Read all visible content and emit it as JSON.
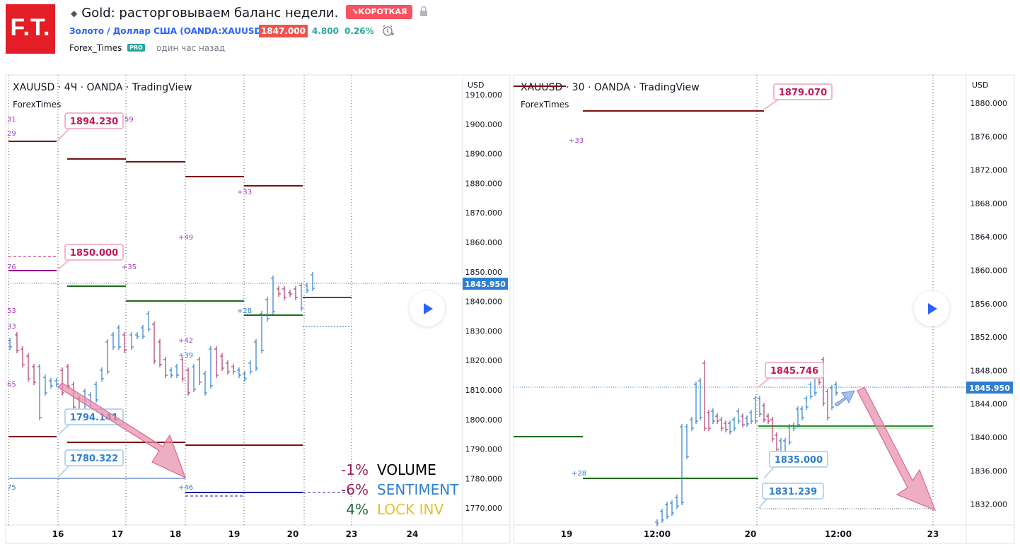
{
  "header": {
    "logo_text": "F.T.",
    "title": "Gold: расторговываем баланс недели.",
    "idea_badge": "↘КОРОТКАЯ",
    "symbol": "Золото / Доллар США (OANDA:XAUUSD)",
    "price": "1847.000",
    "change": "4.800",
    "change_pct": "0.26%",
    "author": "Forex_Times",
    "author_badge": "PRO",
    "published": "один час назад"
  },
  "left_chart": {
    "legend": "XAUUSD · 4Ч · OANDA · TradingView",
    "watermark": "ForexTimes",
    "currency": "USD",
    "price_ticks": [
      "1910.000",
      "1900.000",
      "1890.000",
      "1880.000",
      "1870.000",
      "1860.000",
      "1850.000",
      "1840.000",
      "1830.000",
      "1820.000",
      "1810.000",
      "1800.000",
      "1790.000",
      "1780.000",
      "1770.000"
    ],
    "current_price": "1845.950",
    "time_ticks": [
      "16",
      "17",
      "18",
      "19",
      "20",
      "23",
      "24"
    ],
    "callouts": [
      "1894.230",
      "1850.000",
      "1794.141",
      "1780.322"
    ],
    "small_labels": [
      "31",
      "29",
      "59",
      "+33",
      "+49",
      "+35",
      "76",
      "53",
      "33",
      "+42",
      "+39",
      "+28",
      "65",
      "75",
      "+46"
    ],
    "stats": [
      {
        "pct": "-1%",
        "label": "VOLUME",
        "pct_color": "#9c1f55",
        "label_color": "#000000"
      },
      {
        "pct": "-6%",
        "label": "SENTIMENT",
        "pct_color": "#9c1f55",
        "label_color": "#2f7fd0"
      },
      {
        "pct": "4%",
        "label": "LOCK INV",
        "pct_color": "#1d6b3a",
        "label_color": "#e6c02e"
      }
    ]
  },
  "right_chart": {
    "legend": "XAUUSD · 30 · OANDA · TradingView",
    "watermark": "ForexTimes",
    "currency": "USD",
    "price_ticks": [
      "1880.000",
      "1876.000",
      "1872.000",
      "1868.000",
      "1864.000",
      "1860.000",
      "1856.000",
      "1852.000",
      "1848.000",
      "1844.000",
      "1840.000",
      "1836.000",
      "1832.000"
    ],
    "current_price": "1845.950",
    "time_ticks": [
      "19",
      "12:00",
      "20",
      "12:00",
      "23"
    ],
    "callouts": [
      "1879.070",
      "1845.746",
      "1835.000",
      "1831.239"
    ],
    "small_labels": [
      "+33",
      "+28"
    ]
  },
  "colors": {
    "bull": "#2f7fd0",
    "bear": "#b03a6a",
    "resistance": "#7a1010",
    "support": "#1d6b1d",
    "arrow": "#e68aa8"
  }
}
